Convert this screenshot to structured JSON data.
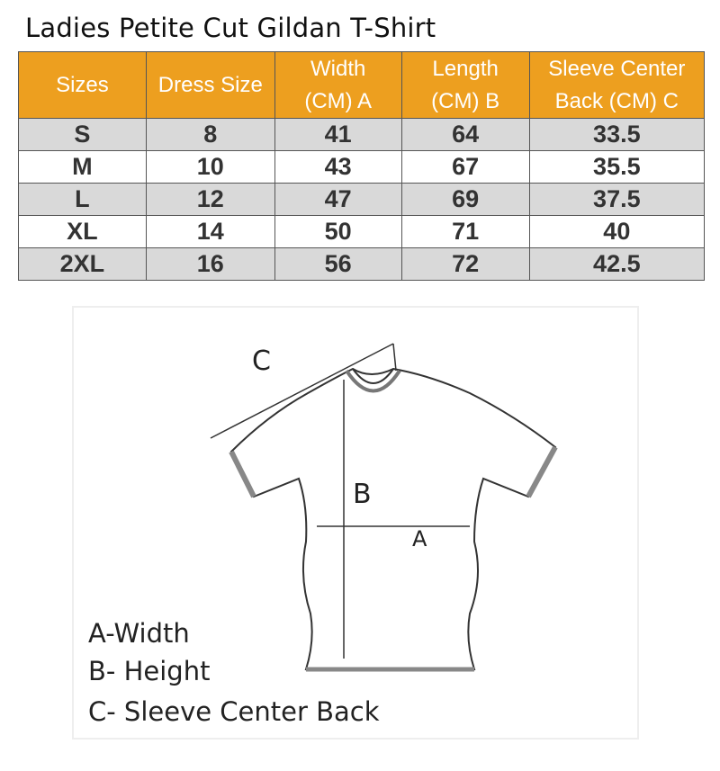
{
  "title": "Ladies Petite Cut Gildan T-Shirt",
  "table": {
    "headers": [
      "Sizes",
      "Dress Size",
      "Width\n(CM) A",
      "Length\n(CM) B",
      "Sleeve Center\nBack (CM) C"
    ],
    "rows": [
      [
        "S",
        "8",
        "41",
        "64",
        "33.5"
      ],
      [
        "M",
        "10",
        "43",
        "67",
        "35.5"
      ],
      [
        "L",
        "12",
        "47",
        "69",
        "37.5"
      ],
      [
        "XL",
        "14",
        "50",
        "71",
        "40"
      ],
      [
        "2XL",
        "16",
        "56",
        "72",
        "42.5"
      ]
    ]
  },
  "colors": {
    "header": "#ED9F1F",
    "stripe": "#D9D9D9"
  },
  "diagram": {
    "label_a": "A",
    "label_b": "B",
    "label_c": "C",
    "legend": [
      "A-Width",
      "B- Height",
      "C- Sleeve Center Back"
    ]
  }
}
